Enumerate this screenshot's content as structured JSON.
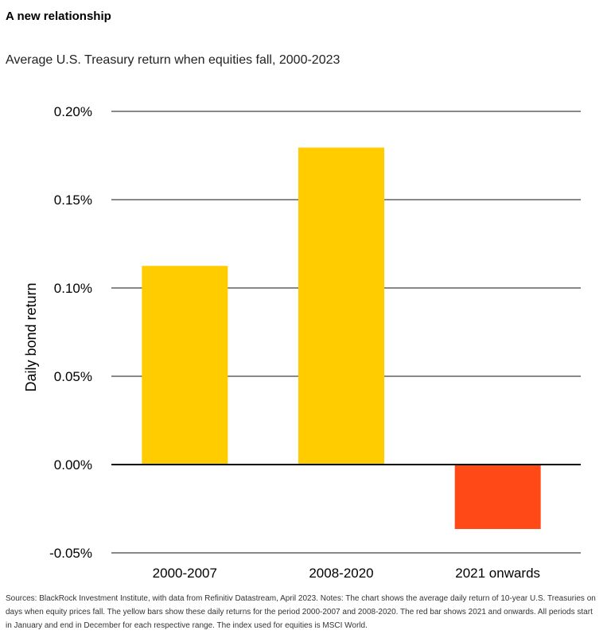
{
  "header": {
    "title": "A new relationship",
    "subtitle": "Average U.S. Treasury return when equities fall, 2000-2023"
  },
  "chart_data": {
    "type": "bar",
    "categories": [
      "2000-2007",
      "2008-2020",
      "2021 onwards"
    ],
    "values": [
      0.1125,
      0.1795,
      -0.0365
    ],
    "colors": [
      "#FFCC00",
      "#FFCC00",
      "#FF4A17"
    ],
    "ylabel": "Daily bond return",
    "ylim": [
      -0.05,
      0.2
    ],
    "yticks": [
      0.2,
      0.15,
      0.1,
      0.05,
      0.0,
      -0.05
    ],
    "ytick_labels": [
      "0.20%",
      "0.15%",
      "0.10%",
      "0.05%",
      "0.00%",
      "-0.05%"
    ],
    "grid": true
  },
  "footer": {
    "notes": "Sources: BlackRock Investment Institute, with data from Refinitiv Datastream, April 2023. Notes: The chart shows the average daily return of 10-year U.S. Treasuries on days when equity prices fall. The yellow bars show these daily returns for the period 2000-2007 and 2008-2020. The red bar shows 2021 and onwards. All periods start in January and end in December for each respective range. The index used for equities is MSCI World."
  }
}
